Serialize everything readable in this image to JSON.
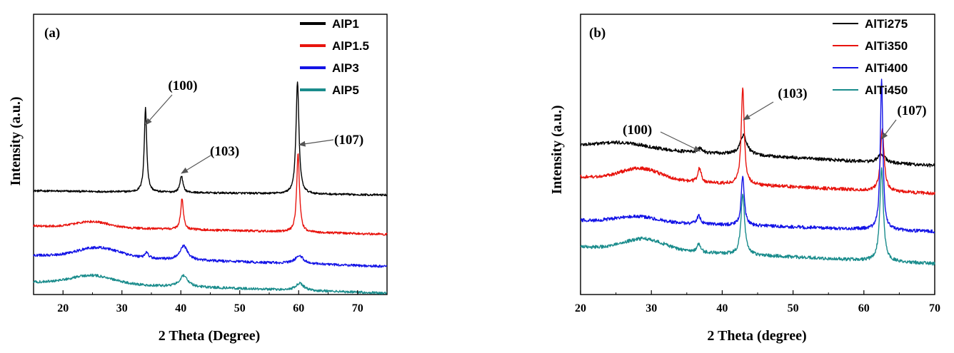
{
  "chart_data": [
    {
      "type": "line",
      "panel_label": "(a)",
      "xlabel": "2 Theta (Degree)",
      "ylabel": "Intensity (a.u.)",
      "xlim": [
        15,
        75
      ],
      "xticks": [
        20,
        30,
        40,
        50,
        60,
        70
      ],
      "y_ticks_shown": false,
      "grid": false,
      "legend_position": "top-right",
      "series": [
        {
          "name": "AlP1",
          "color": "#000000",
          "offset": 0.37,
          "slope": -0.015,
          "noise": 0.0035,
          "bumps": [],
          "peaks": [
            [
              34.0,
              0.3,
              0.25
            ],
            [
              40.1,
              0.06,
              0.3
            ],
            [
              59.8,
              0.4,
              0.3
            ]
          ]
        },
        {
          "name": "AlP1.5",
          "color": "#e8140e",
          "offset": 0.245,
          "slope": -0.03,
          "noise": 0.004,
          "bumps": [
            [
              25,
              0.02,
              4
            ]
          ],
          "peaks": [
            [
              40.2,
              0.11,
              0.28
            ],
            [
              59.9,
              0.28,
              0.28
            ]
          ]
        },
        {
          "name": "AlP3",
          "color": "#1414e6",
          "offset": 0.14,
          "slope": -0.04,
          "noise": 0.0045,
          "bumps": [
            [
              26,
              0.035,
              5
            ]
          ],
          "peaks": [
            [
              34.2,
              0.02,
              0.4
            ],
            [
              40.5,
              0.05,
              0.8
            ],
            [
              60.1,
              0.03,
              0.8
            ]
          ]
        },
        {
          "name": "AlP5",
          "color": "#1a8c8c",
          "offset": 0.045,
          "slope": -0.04,
          "noise": 0.0045,
          "bumps": [
            [
              25,
              0.03,
              5
            ]
          ],
          "peaks": [
            [
              40.5,
              0.04,
              0.8
            ],
            [
              60.2,
              0.025,
              0.8
            ]
          ]
        }
      ],
      "annotations": [
        {
          "text": "(100)",
          "target_x": 34.0
        },
        {
          "text": "(103)",
          "target_x": 40.1
        },
        {
          "text": "(107)",
          "target_x": 59.8
        }
      ]
    },
    {
      "type": "line",
      "panel_label": "(b)",
      "xlabel": "2 Theta (degree)",
      "ylabel": "Intensity (a.u.)",
      "xlim": [
        20,
        70
      ],
      "xticks": [
        20,
        30,
        40,
        50,
        60,
        70
      ],
      "y_ticks_shown": false,
      "grid": false,
      "legend_position": "top-right",
      "series": [
        {
          "name": "AlTi275",
          "color": "#000000",
          "offset": 0.53,
          "slope": -0.07,
          "noise": 0.006,
          "bumps": [
            [
              26,
              0.02,
              5
            ]
          ],
          "peaks": [
            [
              36.9,
              0.015,
              0.4
            ],
            [
              43.0,
              0.07,
              0.6
            ],
            [
              62.5,
              0.03,
              0.6
            ]
          ]
        },
        {
          "name": "AlTi350",
          "color": "#e8140e",
          "offset": 0.42,
          "slope": -0.06,
          "noise": 0.006,
          "bumps": [
            [
              28.5,
              0.04,
              4
            ]
          ],
          "peaks": [
            [
              36.8,
              0.05,
              0.3
            ],
            [
              42.9,
              0.35,
              0.25
            ],
            [
              62.6,
              0.22,
              0.3
            ]
          ]
        },
        {
          "name": "AlTi400",
          "color": "#1414e6",
          "offset": 0.265,
          "slope": -0.04,
          "noise": 0.006,
          "bumps": [
            [
              28,
              0.02,
              4
            ]
          ],
          "peaks": [
            [
              36.7,
              0.03,
              0.3
            ],
            [
              42.9,
              0.18,
              0.25
            ],
            [
              62.5,
              0.54,
              0.22
            ]
          ]
        },
        {
          "name": "AlTi450",
          "color": "#1a8c8c",
          "offset": 0.17,
          "slope": -0.06,
          "noise": 0.006,
          "bumps": [
            [
              29,
              0.04,
              4
            ]
          ],
          "peaks": [
            [
              36.7,
              0.03,
              0.3
            ],
            [
              42.9,
              0.22,
              0.3
            ],
            [
              62.5,
              0.33,
              0.3
            ]
          ]
        }
      ],
      "annotations": [
        {
          "text": "(100)",
          "target_x": 36.9
        },
        {
          "text": "(103)",
          "target_x": 43.0
        },
        {
          "text": "(107)",
          "target_x": 62.5
        }
      ]
    }
  ]
}
